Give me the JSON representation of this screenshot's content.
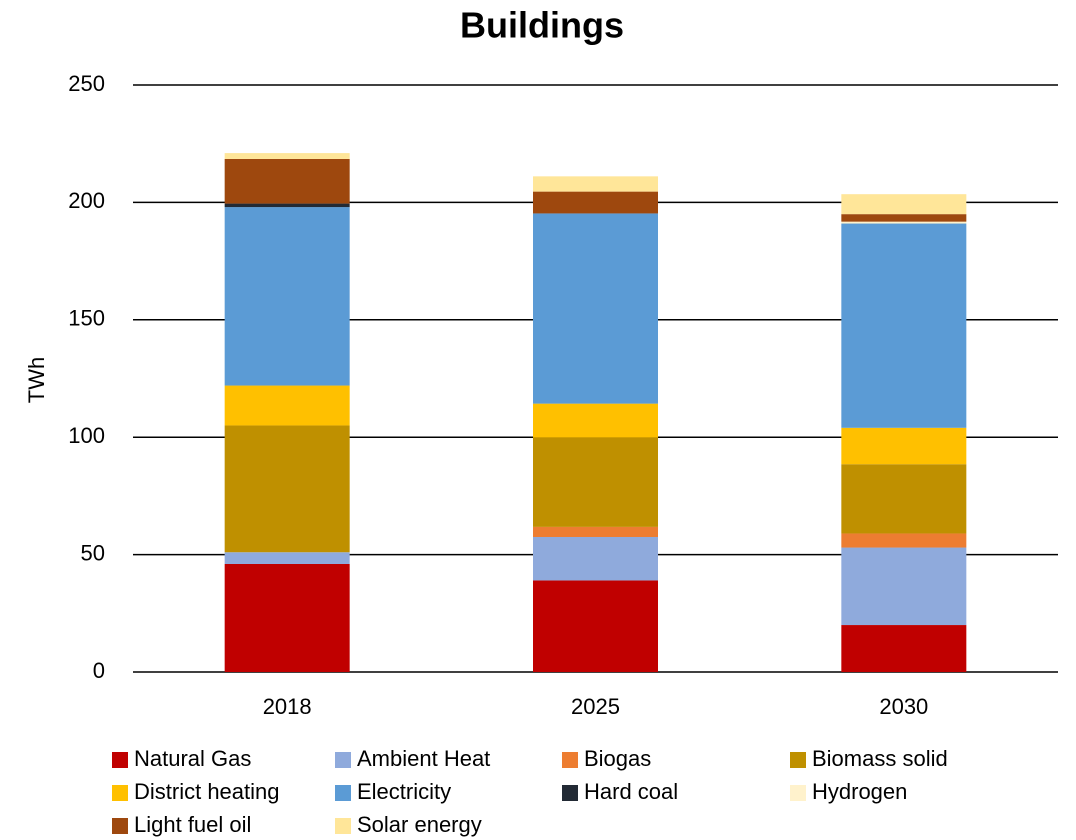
{
  "chart_data": {
    "type": "stacked_bar",
    "title": "Buildings",
    "y_label": "TWh",
    "categories": [
      "2018",
      "2025",
      "2030"
    ],
    "series": [
      {
        "name": "Natural Gas",
        "color": "#c00000",
        "values": [
          46,
          39,
          20
        ]
      },
      {
        "name": "Ambient Heat",
        "color": "#8faadc",
        "values": [
          5,
          18.5,
          33
        ]
      },
      {
        "name": "Biogas",
        "color": "#ed7d31",
        "values": [
          0,
          4.3,
          6
        ]
      },
      {
        "name": "Biomass solid",
        "color": "#bf9000",
        "values": [
          54,
          38,
          29.5
        ]
      },
      {
        "name": "District heating",
        "color": "#ffc000",
        "values": [
          17,
          14.5,
          15.5
        ]
      },
      {
        "name": "Electricity",
        "color": "#5b9bd5",
        "values": [
          76,
          81,
          87
        ]
      },
      {
        "name": "Hard coal",
        "color": "#222a35",
        "values": [
          1.5,
          0,
          0
        ]
      },
      {
        "name": "Hydrogen",
        "color": "#fff2cc",
        "values": [
          0,
          0,
          0.8
        ]
      },
      {
        "name": "Light fuel oil",
        "color": "#9e480e",
        "values": [
          19,
          9.3,
          3.2
        ]
      },
      {
        "name": "Solar energy",
        "color": "#ffe699",
        "values": [
          2.5,
          6.5,
          8.5
        ]
      }
    ],
    "ylim": [
      0,
      250
    ],
    "yticks": [
      0,
      50,
      100,
      150,
      200,
      250
    ],
    "grid": true,
    "legend": "bottom"
  }
}
